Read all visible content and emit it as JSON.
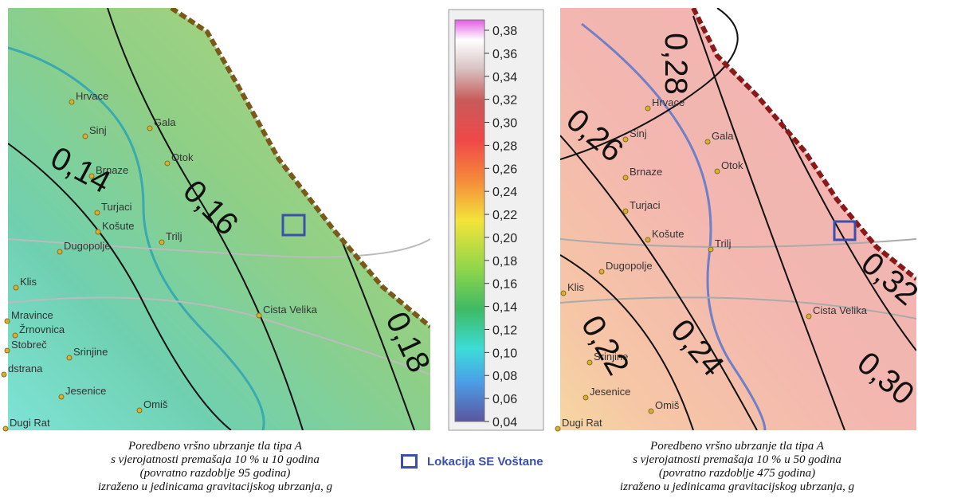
{
  "left_map": {
    "places": [
      "Hrvace",
      "Sinj",
      "Gala",
      "Otok",
      "Brnaze",
      "Turjaci",
      "Košute",
      "Trilj",
      "Dugopolje",
      "Klis",
      "Cista Velika",
      "Mravince",
      "Žrnovnica",
      "Stobreč",
      "Srinjine",
      "dstrana",
      "Jesenice",
      "Omiš",
      "Dugi Rat"
    ],
    "contour_labels": [
      "0,14",
      "0,16",
      "0,18"
    ],
    "caption": [
      "Poredbeno vršno ubrzanje tla tipa A",
      "s vjerojatnosti premašaja 10 % u 10 godina",
      "(povratno razdoblje 95 godina)",
      "izraženo u jedinicama gravitacijskog ubrzanja, g"
    ]
  },
  "right_map": {
    "places": [
      "Hrvace",
      "Sinj",
      "Gala",
      "Otok",
      "Brnaze",
      "Turjaci",
      "Košute",
      "Trilj",
      "Dugopolje",
      "Klis",
      "Cista Velika",
      "Srinjine",
      "Jesenice",
      "Omiš",
      "Dugi Rat"
    ],
    "contour_labels": [
      "0,28",
      "0,26",
      "0,32",
      "0,22",
      "0,24",
      "0,30"
    ],
    "caption": [
      "Poredbeno vršno ubrzanje tla tipa A",
      "s vjerojatnosti premašaja 10 % u 50 godina",
      "(povratno razdoblje 475 godina)",
      "izraženo u jedinicama gravitacijskog ubrzanja, g"
    ]
  },
  "colorbar": {
    "ticks": [
      {
        "value": 0.38,
        "label": "0,38"
      },
      {
        "value": 0.36,
        "label": "0,36"
      },
      {
        "value": 0.34,
        "label": "0,34"
      },
      {
        "value": 0.32,
        "label": "0,32"
      },
      {
        "value": 0.3,
        "label": "0,30"
      },
      {
        "value": 0.28,
        "label": "0,28"
      },
      {
        "value": 0.26,
        "label": "0,26"
      },
      {
        "value": 0.24,
        "label": "0,24"
      },
      {
        "value": 0.22,
        "label": "0,22"
      },
      {
        "value": 0.2,
        "label": "0,20"
      },
      {
        "value": 0.18,
        "label": "0,18"
      },
      {
        "value": 0.16,
        "label": "0,16"
      },
      {
        "value": 0.14,
        "label": "0,14"
      },
      {
        "value": 0.12,
        "label": "0,12"
      },
      {
        "value": 0.1,
        "label": "0,10"
      },
      {
        "value": 0.08,
        "label": "0,08"
      },
      {
        "value": 0.06,
        "label": "0,06"
      },
      {
        "value": 0.04,
        "label": "0,04"
      }
    ]
  },
  "legend": {
    "label": "Lokacija SE Voštane"
  }
}
